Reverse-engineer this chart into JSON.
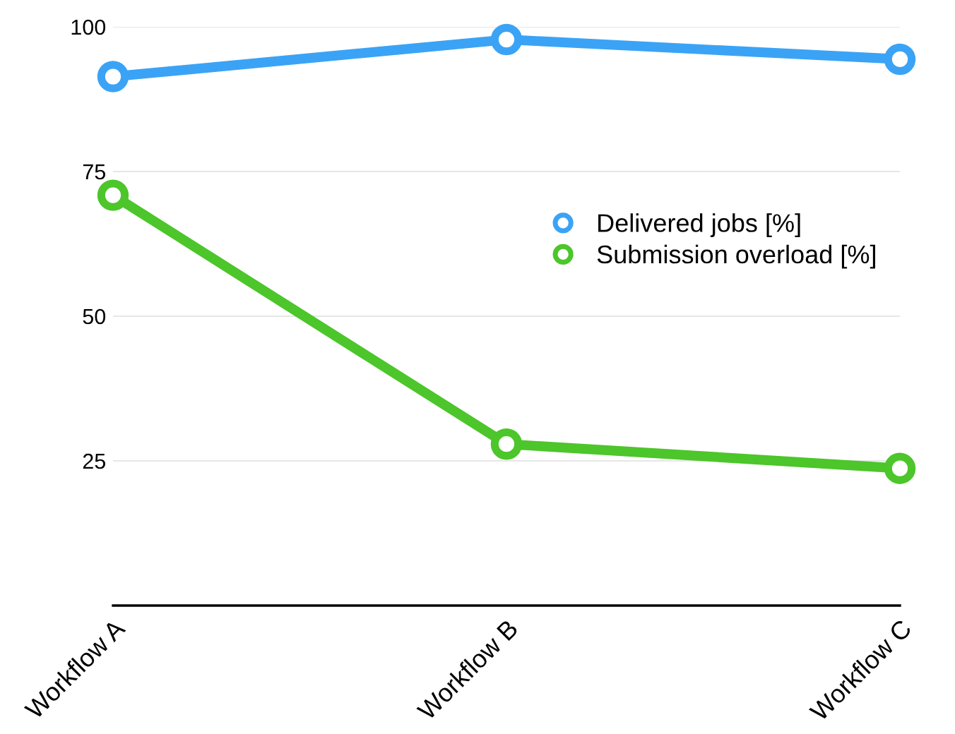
{
  "chart_data": {
    "type": "line",
    "categories": [
      "Workflow A",
      "Workflow B",
      "Workflow C"
    ],
    "series": [
      {
        "name": "Delivered jobs [%]",
        "color": "#3ba3f5",
        "values": [
          91.4,
          97.8,
          94.4
        ]
      },
      {
        "name": "Submission overload [%]",
        "color": "#4cc62a",
        "values": [
          70.9,
          27.9,
          23.7
        ]
      }
    ],
    "ylim": [
      0,
      100
    ],
    "yticks": [
      25,
      50,
      75,
      100
    ],
    "grid": "y",
    "legend": "right",
    "marker": "circle",
    "line_style": "solid"
  }
}
